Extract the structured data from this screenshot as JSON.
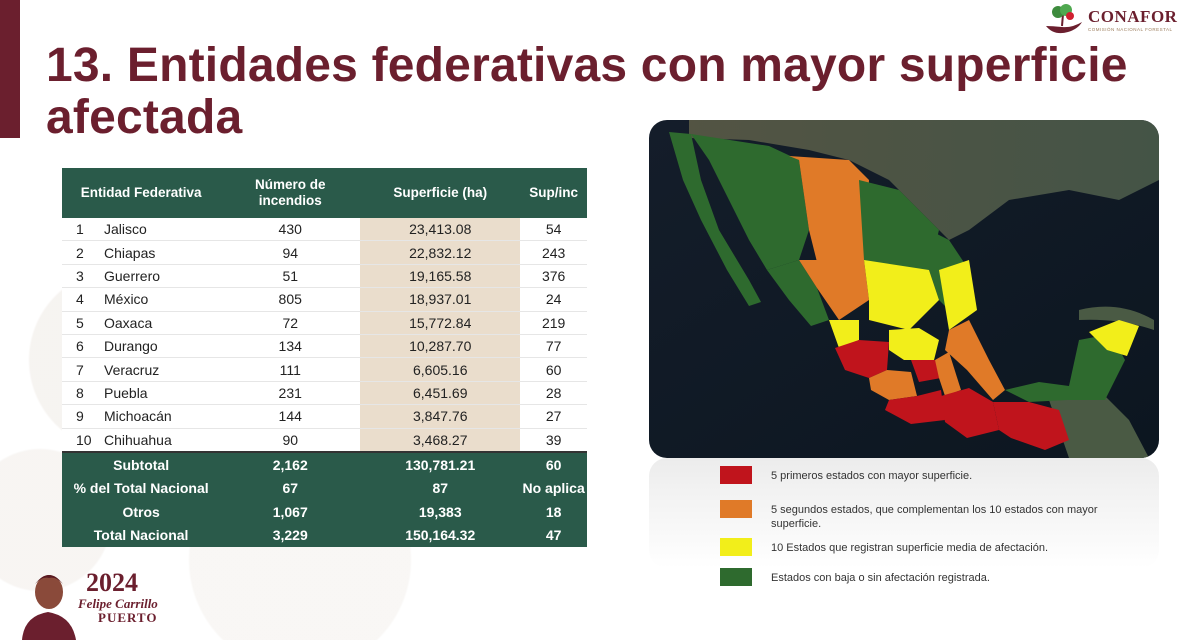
{
  "title": "13. Entidades federativas con mayor superficie afectada",
  "logo": {
    "wordmark": "CONAFOR",
    "subtitle": "COMISIÓN NACIONAL FORESTAL"
  },
  "table": {
    "headers": [
      "Entidad Federativa",
      "Número de incendios",
      "Superficie (ha)",
      "Sup/inc"
    ],
    "rows": [
      {
        "rank": "1",
        "state": "Jalisco",
        "fires": "430",
        "area": "23,413.08",
        "ratio": "54"
      },
      {
        "rank": "2",
        "state": "Chiapas",
        "fires": "94",
        "area": "22,832.12",
        "ratio": "243"
      },
      {
        "rank": "3",
        "state": "Guerrero",
        "fires": "51",
        "area": "19,165.58",
        "ratio": "376"
      },
      {
        "rank": "4",
        "state": "México",
        "fires": "805",
        "area": "18,937.01",
        "ratio": "24"
      },
      {
        "rank": "5",
        "state": "Oaxaca",
        "fires": "72",
        "area": "15,772.84",
        "ratio": "219"
      },
      {
        "rank": "6",
        "state": "Durango",
        "fires": "134",
        "area": "10,287.70",
        "ratio": "77"
      },
      {
        "rank": "7",
        "state": "Veracruz",
        "fires": "111",
        "area": "6,605.16",
        "ratio": "60"
      },
      {
        "rank": "8",
        "state": "Puebla",
        "fires": "231",
        "area": "6,451.69",
        "ratio": "28"
      },
      {
        "rank": "9",
        "state": "Michoacán",
        "fires": "144",
        "area": "3,847.76",
        "ratio": "27"
      },
      {
        "rank": "10",
        "state": "Chihuahua",
        "fires": "90",
        "area": "3,468.27",
        "ratio": "39"
      }
    ],
    "summary": [
      {
        "label": "Subtotal",
        "fires": "2,162",
        "area": "130,781.21",
        "ratio": "60"
      },
      {
        "label": "% del Total Nacional",
        "fires": "67",
        "area": "87",
        "ratio": "No aplica"
      },
      {
        "label": "Otros",
        "fires": "1,067",
        "area": "19,383",
        "ratio": "18"
      },
      {
        "label": "Total Nacional",
        "fires": "3,229",
        "area": "150,164.32",
        "ratio": "47"
      }
    ]
  },
  "legend": [
    {
      "color": "#c0141c",
      "text": "5 primeros estados con mayor superficie."
    },
    {
      "color": "#e07a28",
      "text": "5 segundos estados, que complementan los 10 estados con mayor superficie."
    },
    {
      "color": "#f2ee1a",
      "text": "10 Estados que registran superficie media de afectación."
    },
    {
      "color": "#2e6a2e",
      "text": "Estados con baja o sin afectación registrada."
    }
  ],
  "footer_logo": {
    "year": "2024",
    "name_line1": "Felipe Carrillo",
    "name_line2": "PUERTO"
  },
  "colors": {
    "primary": "#6b1f2e",
    "table_green": "#2a5a4a",
    "highlight": "#eaddcc"
  }
}
